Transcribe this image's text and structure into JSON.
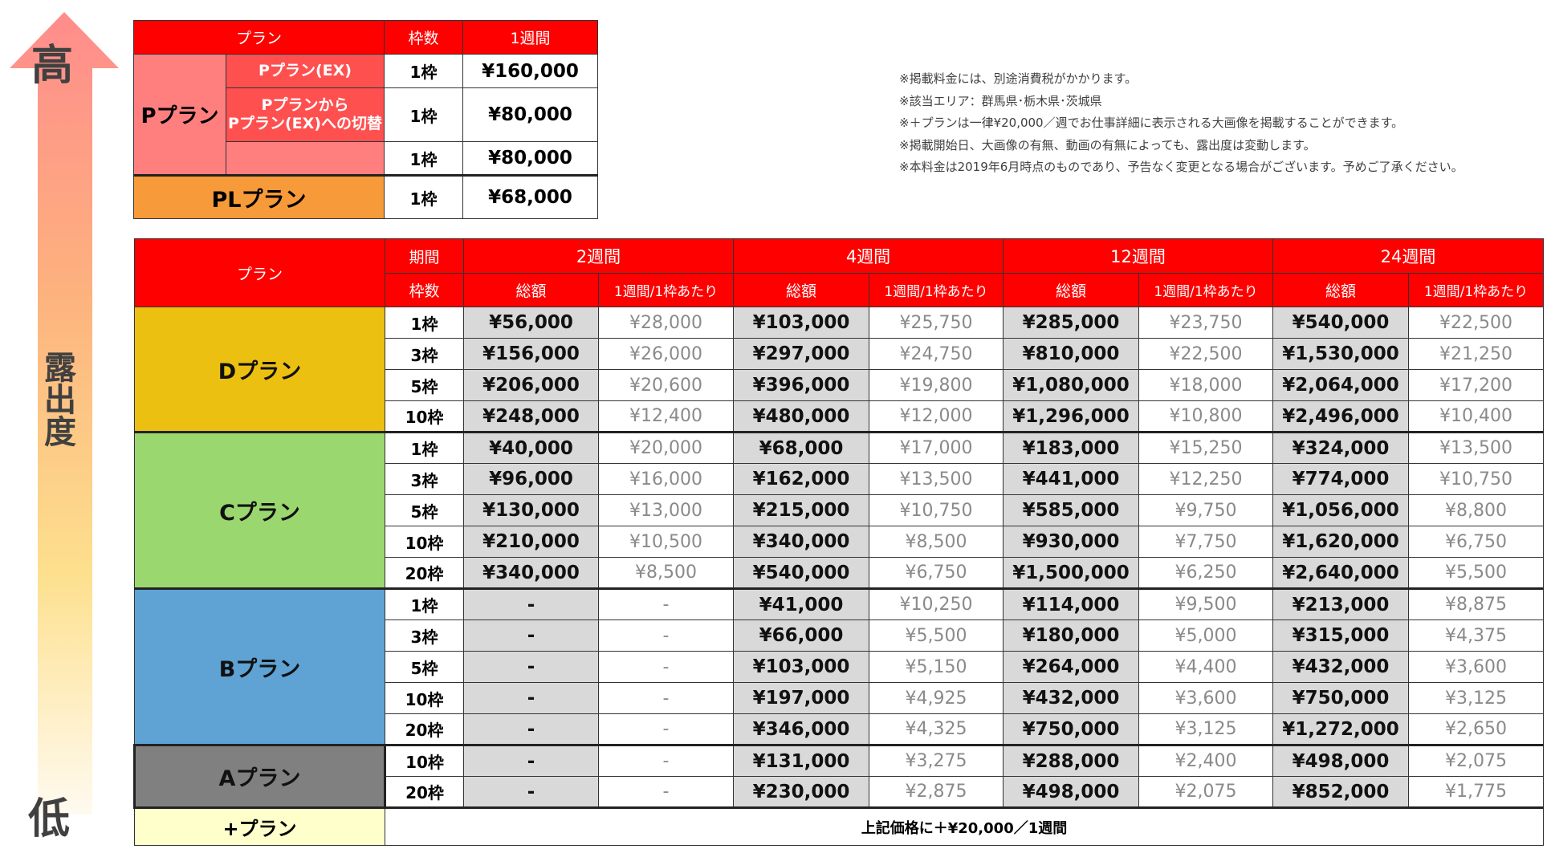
{
  "axis": {
    "high": "高",
    "middle": "露出度",
    "low": "低"
  },
  "top_table": {
    "headers": {
      "plan": "プラン",
      "frames": "枠数",
      "week": "1週間"
    },
    "p_plan": "Pプラン",
    "rows": [
      {
        "sub": "Pプラン(EX)",
        "frames": "1枠",
        "price": "¥160,000"
      },
      {
        "sub": "Pプランから\nPプラン(EX)への切替",
        "frames": "1枠",
        "price": "¥80,000"
      },
      {
        "sub": "",
        "frames": "1枠",
        "price": "¥80,000"
      }
    ],
    "pl_plan": {
      "label": "PLプラン",
      "frames": "1枠",
      "price": "¥68,000"
    }
  },
  "notes": [
    "※掲載料金には、別途消費税がかかります。",
    "※該当エリア：群馬県･栃木県･茨城県",
    "※＋プランは一律¥20,000／週でお仕事詳細に表示される大画像を掲載することができます。",
    "※掲載開始日、大画像の有無、動画の有無によっても、露出度は変動します。",
    "※本料金は2019年6月時点のものであり、予告なく変更となる場合がございます。予めご了承ください。"
  ],
  "main_table": {
    "headers": {
      "plan": "プラン",
      "period": "期間",
      "frames": "枠数",
      "total": "総額",
      "per": "1週間/1枠あたり",
      "periods": [
        "2週間",
        "4週間",
        "12週間",
        "24週間"
      ]
    },
    "colors": {
      "header": "#ff0000",
      "D": "#ecc010",
      "C": "#9bd76f",
      "B": "#5ea3d4",
      "A": "#808080",
      "plus": "#ffffcc"
    },
    "plans": [
      {
        "label": "Dプラン",
        "color": "#ecc010",
        "rows": [
          {
            "frames": "1枠",
            "cells": [
              "¥56,000",
              "¥28,000",
              "¥103,000",
              "¥25,750",
              "¥285,000",
              "¥23,750",
              "¥540,000",
              "¥22,500"
            ]
          },
          {
            "frames": "3枠",
            "cells": [
              "¥156,000",
              "¥26,000",
              "¥297,000",
              "¥24,750",
              "¥810,000",
              "¥22,500",
              "¥1,530,000",
              "¥21,250"
            ]
          },
          {
            "frames": "5枠",
            "cells": [
              "¥206,000",
              "¥20,600",
              "¥396,000",
              "¥19,800",
              "¥1,080,000",
              "¥18,000",
              "¥2,064,000",
              "¥17,200"
            ]
          },
          {
            "frames": "10枠",
            "cells": [
              "¥248,000",
              "¥12,400",
              "¥480,000",
              "¥12,000",
              "¥1,296,000",
              "¥10,800",
              "¥2,496,000",
              "¥10,400"
            ]
          }
        ]
      },
      {
        "label": "Cプラン",
        "color": "#9bd76f",
        "rows": [
          {
            "frames": "1枠",
            "cells": [
              "¥40,000",
              "¥20,000",
              "¥68,000",
              "¥17,000",
              "¥183,000",
              "¥15,250",
              "¥324,000",
              "¥13,500"
            ]
          },
          {
            "frames": "3枠",
            "cells": [
              "¥96,000",
              "¥16,000",
              "¥162,000",
              "¥13,500",
              "¥441,000",
              "¥12,250",
              "¥774,000",
              "¥10,750"
            ]
          },
          {
            "frames": "5枠",
            "cells": [
              "¥130,000",
              "¥13,000",
              "¥215,000",
              "¥10,750",
              "¥585,000",
              "¥9,750",
              "¥1,056,000",
              "¥8,800"
            ]
          },
          {
            "frames": "10枠",
            "cells": [
              "¥210,000",
              "¥10,500",
              "¥340,000",
              "¥8,500",
              "¥930,000",
              "¥7,750",
              "¥1,620,000",
              "¥6,750"
            ]
          },
          {
            "frames": "20枠",
            "cells": [
              "¥340,000",
              "¥8,500",
              "¥540,000",
              "¥6,750",
              "¥1,500,000",
              "¥6,250",
              "¥2,640,000",
              "¥5,500"
            ]
          }
        ]
      },
      {
        "label": "Bプラン",
        "color": "#5ea3d4",
        "rows": [
          {
            "frames": "1枠",
            "cells": [
              "-",
              "-",
              "¥41,000",
              "¥10,250",
              "¥114,000",
              "¥9,500",
              "¥213,000",
              "¥8,875"
            ]
          },
          {
            "frames": "3枠",
            "cells": [
              "-",
              "-",
              "¥66,000",
              "¥5,500",
              "¥180,000",
              "¥5,000",
              "¥315,000",
              "¥4,375"
            ]
          },
          {
            "frames": "5枠",
            "cells": [
              "-",
              "-",
              "¥103,000",
              "¥5,150",
              "¥264,000",
              "¥4,400",
              "¥432,000",
              "¥3,600"
            ]
          },
          {
            "frames": "10枠",
            "cells": [
              "-",
              "-",
              "¥197,000",
              "¥4,925",
              "¥432,000",
              "¥3,600",
              "¥750,000",
              "¥3,125"
            ]
          },
          {
            "frames": "20枠",
            "cells": [
              "-",
              "-",
              "¥346,000",
              "¥4,325",
              "¥750,000",
              "¥3,125",
              "¥1,272,000",
              "¥2,650"
            ]
          }
        ]
      },
      {
        "label": "Aプラン",
        "color": "#808080",
        "rows": [
          {
            "frames": "10枠",
            "cells": [
              "-",
              "-",
              "¥131,000",
              "¥3,275",
              "¥288,000",
              "¥2,400",
              "¥498,000",
              "¥2,075"
            ]
          },
          {
            "frames": "20枠",
            "cells": [
              "-",
              "-",
              "¥230,000",
              "¥2,875",
              "¥498,000",
              "¥2,075",
              "¥852,000",
              "¥1,775"
            ]
          }
        ]
      }
    ],
    "plus": {
      "label": "+プラン",
      "note": "上記価格に＋¥20,000／1週間"
    }
  }
}
